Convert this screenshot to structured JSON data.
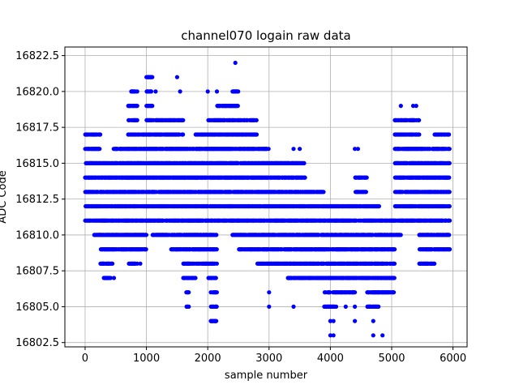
{
  "chart_data": {
    "type": "scatter",
    "title": "channel070 logain raw data",
    "xlabel": "sample number",
    "ylabel": "ADC Code",
    "xlim": [
      -330,
      6230
    ],
    "ylim": [
      16802.2,
      16823.1
    ],
    "x_ticks": [
      0,
      1000,
      2000,
      3000,
      4000,
      5000,
      6000
    ],
    "x_tick_labels": [
      "0",
      "1000",
      "2000",
      "3000",
      "4000",
      "5000",
      "6000"
    ],
    "y_ticks": [
      16802.5,
      16805.0,
      16807.5,
      16810.0,
      16812.5,
      16815.0,
      16817.5,
      16820.0,
      16822.5
    ],
    "y_tick_labels": [
      "16802.5",
      "16805.0",
      "16807.5",
      "16810.0",
      "16812.5",
      "16815.0",
      "16817.5",
      "16820.0",
      "16822.5"
    ],
    "grid": true,
    "marker_color": "#0000ff",
    "segments": [
      {
        "x": [
          0,
          150
        ],
        "levels": [
          16817,
          16816,
          16815,
          16814,
          16813,
          16812,
          16811
        ]
      },
      {
        "x": [
          150,
          250
        ],
        "levels": [
          16817,
          16816,
          16815,
          16814,
          16813,
          16812,
          16811,
          16810
        ]
      },
      {
        "x": [
          250,
          450
        ],
        "levels": [
          16815,
          16814,
          16813,
          16812,
          16811,
          16810,
          16809,
          16808
        ]
      },
      {
        "x": [
          300,
          420
        ],
        "levels": [
          16807
        ]
      },
      {
        "x": [
          450,
          700
        ],
        "levels": [
          16816,
          16815,
          16814,
          16813,
          16812,
          16811,
          16810,
          16809
        ]
      },
      {
        "x": [
          700,
          850
        ],
        "levels": [
          16819,
          16818,
          16817,
          16816,
          16815,
          16814,
          16813,
          16812,
          16811,
          16810,
          16809,
          16808
        ]
      },
      {
        "x": [
          750,
          850
        ],
        "levels": [
          16820
        ]
      },
      {
        "x": [
          850,
          1000
        ],
        "levels": [
          16817,
          16816,
          16815,
          16814,
          16813,
          16812,
          16811,
          16810,
          16809
        ]
      },
      {
        "x": [
          1000,
          1100
        ],
        "levels": [
          16821,
          16820,
          16819,
          16818,
          16817,
          16816,
          16815,
          16814,
          16813,
          16812,
          16811
        ]
      },
      {
        "x": [
          1100,
          1400
        ],
        "levels": [
          16818,
          16817,
          16816,
          16815,
          16814,
          16813,
          16812,
          16811,
          16810
        ]
      },
      {
        "x": [
          1400,
          1600
        ],
        "levels": [
          16818,
          16817,
          16816,
          16815,
          16814,
          16813,
          16812,
          16811,
          16810,
          16809
        ]
      },
      {
        "x": [
          1600,
          1800
        ],
        "levels": [
          16816,
          16815,
          16814,
          16813,
          16812,
          16811,
          16810,
          16809,
          16808,
          16807
        ]
      },
      {
        "x": [
          1650,
          1700
        ],
        "levels": [
          16806,
          16805
        ]
      },
      {
        "x": [
          1800,
          2000
        ],
        "levels": [
          16817,
          16816,
          16815,
          16814,
          16813,
          16812,
          16811,
          16810,
          16809,
          16808
        ]
      },
      {
        "x": [
          2000,
          2150
        ],
        "levels": [
          16818,
          16817,
          16816,
          16815,
          16814,
          16813,
          16812,
          16811,
          16810,
          16809,
          16808,
          16807
        ]
      },
      {
        "x": [
          2050,
          2150
        ],
        "levels": [
          16806,
          16805,
          16804
        ]
      },
      {
        "x": [
          2150,
          2400
        ],
        "levels": [
          16819,
          16818,
          16817,
          16816,
          16815,
          16814,
          16813,
          16812,
          16811
        ]
      },
      {
        "x": [
          2400,
          2500
        ],
        "levels": [
          16820,
          16819,
          16818,
          16817,
          16816,
          16815,
          16814,
          16813,
          16812,
          16811,
          16810
        ]
      },
      {
        "x": [
          2500,
          2800
        ],
        "levels": [
          16818,
          16817,
          16816,
          16815,
          16814,
          16813,
          16812,
          16811,
          16810,
          16809
        ]
      },
      {
        "x": [
          2800,
          3000
        ],
        "levels": [
          16816,
          16815,
          16814,
          16813,
          16812,
          16811,
          16810,
          16809,
          16808
        ]
      },
      {
        "x": [
          3000,
          3300
        ],
        "levels": [
          16815,
          16814,
          16813,
          16812,
          16811,
          16810,
          16809,
          16808
        ]
      },
      {
        "x": [
          3300,
          3600
        ],
        "levels": [
          16815,
          16814,
          16813,
          16812,
          16811,
          16810,
          16809,
          16808,
          16807
        ]
      },
      {
        "x": [
          3600,
          3900
        ],
        "levels": [
          16813,
          16812,
          16811,
          16810,
          16809,
          16808,
          16807
        ]
      },
      {
        "x": [
          3900,
          4100
        ],
        "levels": [
          16812,
          16811,
          16810,
          16809,
          16808,
          16807,
          16806,
          16805
        ]
      },
      {
        "x": [
          4100,
          4400
        ],
        "levels": [
          16812,
          16811,
          16810,
          16809,
          16808,
          16807,
          16806
        ]
      },
      {
        "x": [
          4400,
          4600
        ],
        "levels": [
          16814,
          16813,
          16812,
          16811,
          16810,
          16809,
          16808,
          16807
        ]
      },
      {
        "x": [
          4600,
          4800
        ],
        "levels": [
          16812,
          16811,
          16810,
          16809,
          16808,
          16807,
          16806,
          16805
        ]
      },
      {
        "x": [
          4800,
          5050
        ],
        "levels": [
          16811,
          16810,
          16809,
          16808,
          16807,
          16806
        ]
      },
      {
        "x": [
          5050,
          5150
        ],
        "levels": [
          16818,
          16817,
          16816,
          16815,
          16814,
          16813,
          16812,
          16811,
          16810
        ]
      },
      {
        "x": [
          5150,
          5450
        ],
        "levels": [
          16818,
          16817,
          16816,
          16815,
          16814,
          16813,
          16812,
          16811
        ]
      },
      {
        "x": [
          5450,
          5700
        ],
        "levels": [
          16816,
          16815,
          16814,
          16813,
          16812,
          16811,
          16810,
          16809,
          16808
        ]
      },
      {
        "x": [
          5700,
          5950
        ],
        "levels": [
          16817,
          16816,
          16815,
          16814,
          16813,
          16812,
          16811,
          16810,
          16809
        ]
      }
    ],
    "points": [
      [
        2450,
        16822
      ],
      [
        1050,
        16821
      ],
      [
        1080,
        16821
      ],
      [
        1500,
        16821
      ],
      [
        1550,
        16820
      ],
      [
        2000,
        16820
      ],
      [
        2150,
        16820
      ],
      [
        2450,
        16820
      ],
      [
        1150,
        16820
      ],
      [
        5150,
        16819
      ],
      [
        5350,
        16819
      ],
      [
        5400,
        16819
      ],
      [
        3400,
        16816
      ],
      [
        3500,
        16816
      ],
      [
        4400,
        16816
      ],
      [
        4450,
        16816
      ],
      [
        340,
        16807
      ],
      [
        350,
        16807
      ],
      [
        470,
        16807
      ],
      [
        760,
        16808
      ],
      [
        900,
        16808
      ],
      [
        3000,
        16806
      ],
      [
        3000,
        16805
      ],
      [
        3400,
        16805
      ],
      [
        4000,
        16803
      ],
      [
        4050,
        16803
      ],
      [
        4050,
        16804
      ],
      [
        4000,
        16804
      ],
      [
        4000,
        16805
      ],
      [
        4250,
        16805
      ],
      [
        4400,
        16804
      ],
      [
        4400,
        16805
      ],
      [
        4700,
        16803
      ],
      [
        4850,
        16803
      ],
      [
        4650,
        16805
      ],
      [
        4700,
        16804
      ]
    ]
  }
}
